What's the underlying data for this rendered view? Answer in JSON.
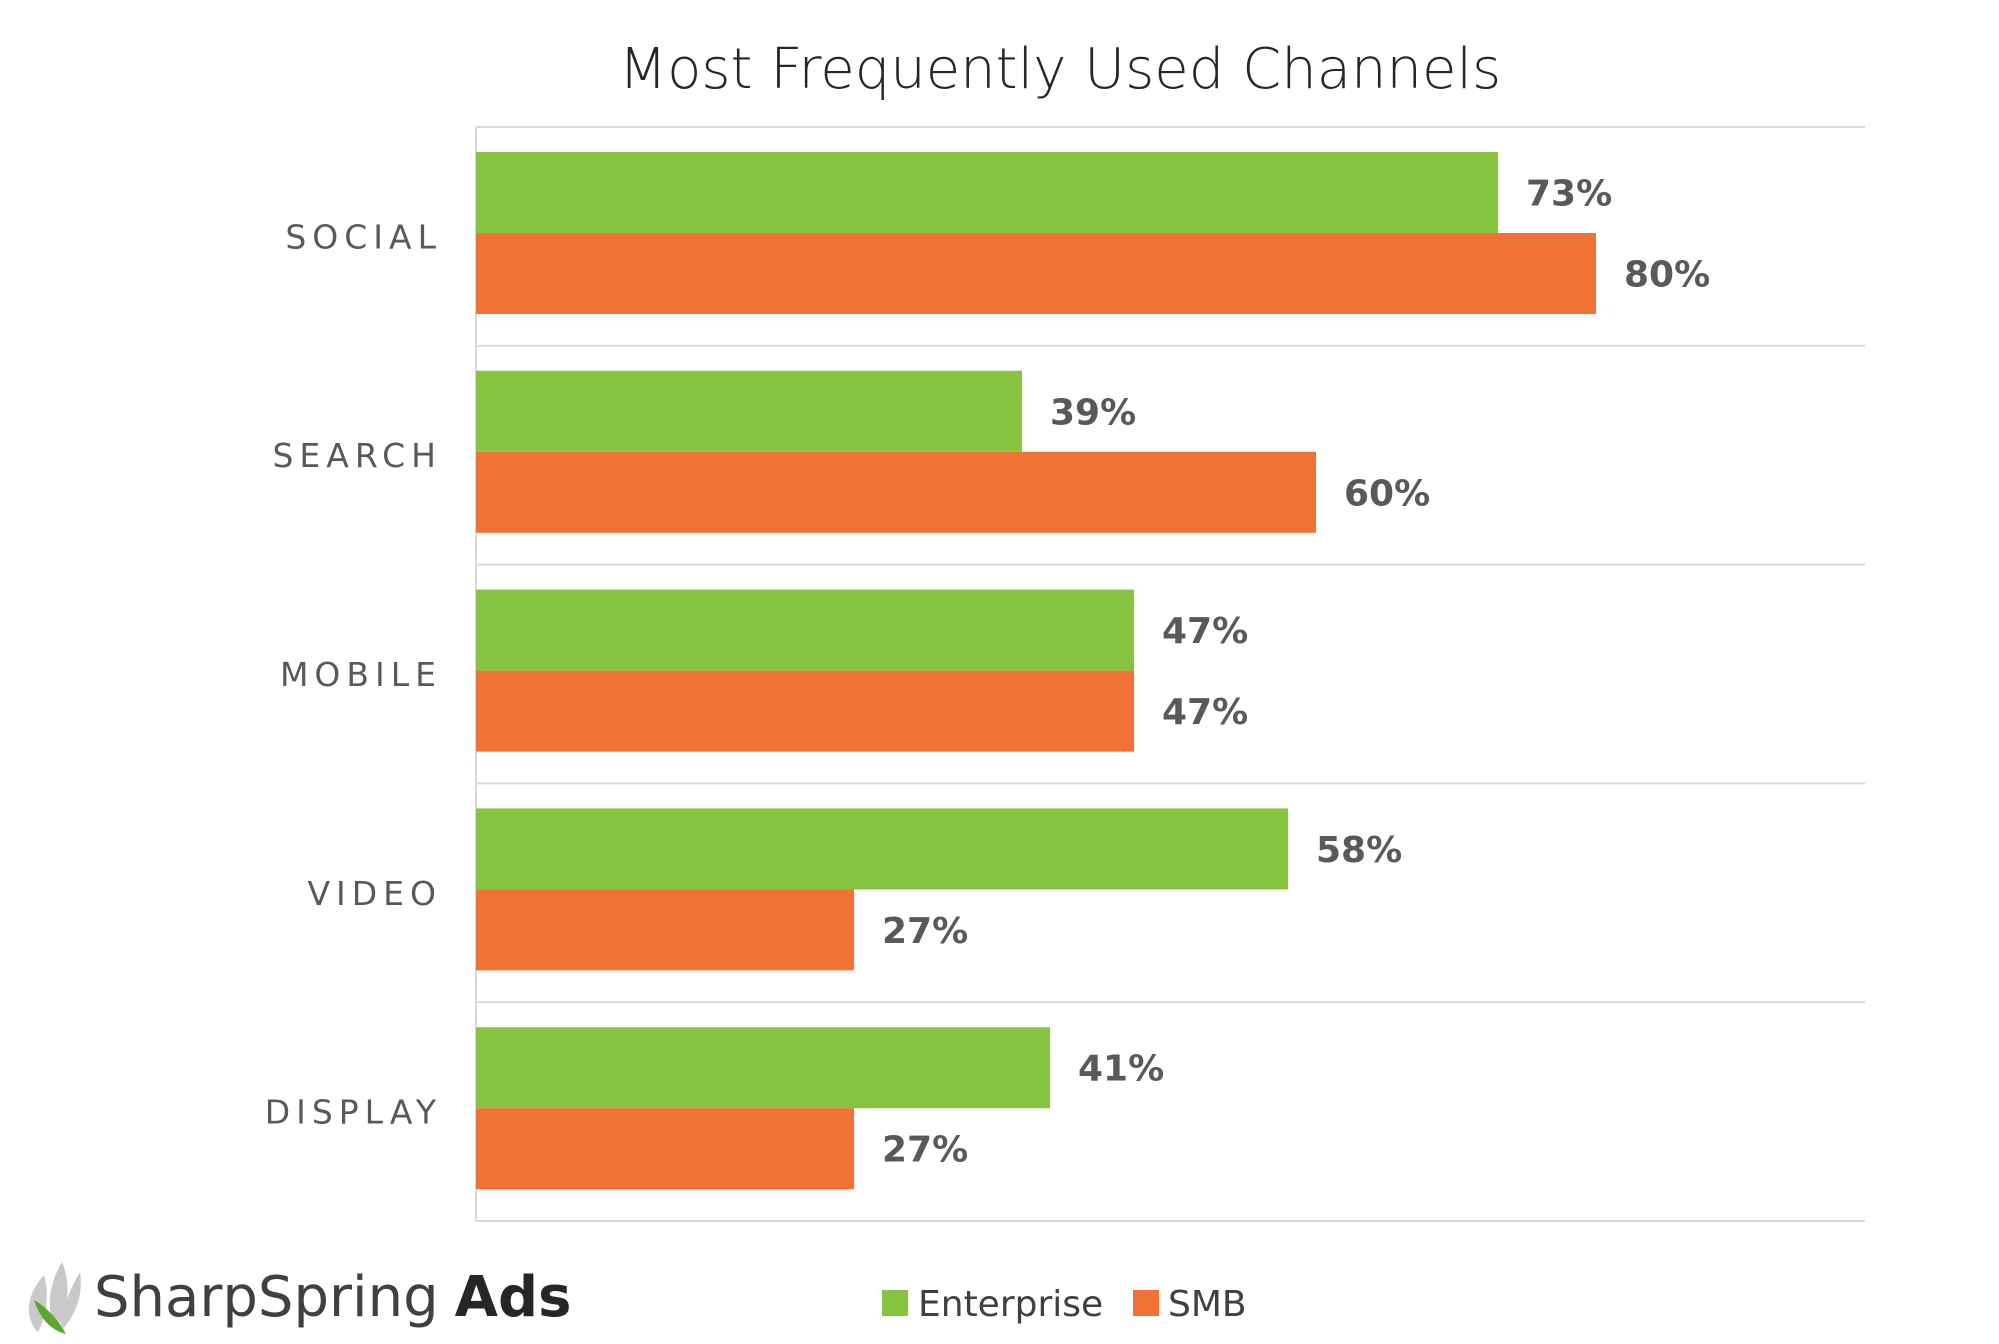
{
  "chart_data": {
    "type": "bar",
    "orientation": "horizontal",
    "title": "Most Frequently Used Channels",
    "categories": [
      "SOCIAL",
      "SEARCH",
      "MOBILE",
      "VIDEO",
      "DISPLAY"
    ],
    "series": [
      {
        "name": "Enterprise",
        "color": "#86c440",
        "values": [
          73,
          39,
          47,
          58,
          41
        ]
      },
      {
        "name": "SMB",
        "color": "#f07335",
        "values": [
          80,
          60,
          47,
          27,
          27
        ]
      }
    ],
    "value_suffix": "%",
    "xlim": [
      0,
      100
    ],
    "xlabel": "",
    "ylabel": "",
    "grid": "horizontal separators between categories",
    "legend_position": "bottom-center"
  },
  "brand": {
    "name": "SharpSpring",
    "suffix": "Ads",
    "icon": "leaf-logo-icon",
    "colors": {
      "leaf_light": "#c9c9c9",
      "leaf_green": "#5aa832"
    }
  }
}
